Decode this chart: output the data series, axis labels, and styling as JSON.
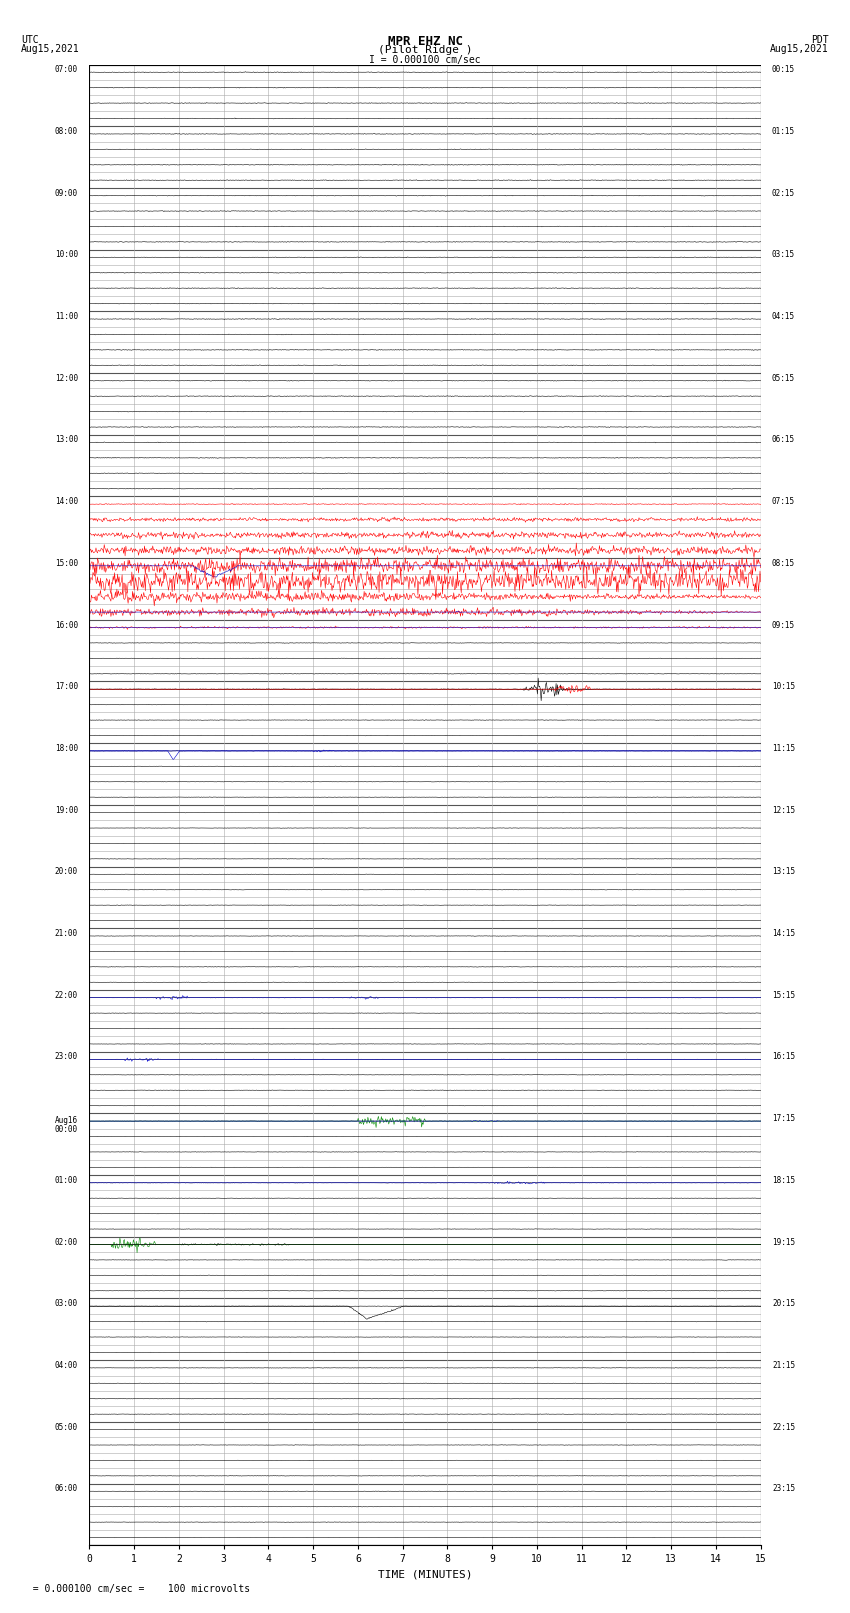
{
  "title_line1": "MPR EHZ NC",
  "title_line2": "(Pilot Ridge )",
  "title_scale": "I = 0.000100 cm/sec",
  "label_left_top": "UTC",
  "label_left_date": "Aug15,2021",
  "label_right_top": "PDT",
  "label_right_date": "Aug15,2021",
  "xlabel": "TIME (MINUTES)",
  "footer_scale": "= 0.000100 cm/sec =    100 microvolts",
  "xlim": [
    0,
    15
  ],
  "xticks": [
    0,
    1,
    2,
    3,
    4,
    5,
    6,
    7,
    8,
    9,
    10,
    11,
    12,
    13,
    14,
    15
  ],
  "num_hours": 24,
  "sub_rows": 4,
  "row_labels_left": [
    "07:00",
    "08:00",
    "09:00",
    "10:00",
    "11:00",
    "12:00",
    "13:00",
    "14:00",
    "15:00",
    "16:00",
    "17:00",
    "18:00",
    "19:00",
    "20:00",
    "21:00",
    "22:00",
    "23:00",
    "Aug16\n00:00",
    "01:00",
    "02:00",
    "03:00",
    "04:00",
    "05:00",
    "06:00"
  ],
  "row_labels_right": [
    "00:15",
    "01:15",
    "02:15",
    "03:15",
    "04:15",
    "05:15",
    "06:15",
    "07:15",
    "08:15",
    "09:15",
    "10:15",
    "11:15",
    "12:15",
    "13:15",
    "14:15",
    "15:15",
    "16:15",
    "17:15",
    "18:15",
    "19:15",
    "20:15",
    "21:15",
    "22:15",
    "23:15"
  ],
  "bg_color": "#ffffff",
  "grid_color": "#aaaaaa",
  "grid_color_dark": "#555555",
  "text_color": "#000000",
  "signal_color_red": "#ff0000",
  "signal_color_blue": "#0000cc",
  "signal_color_black": "#000000",
  "signal_color_green": "#008800"
}
